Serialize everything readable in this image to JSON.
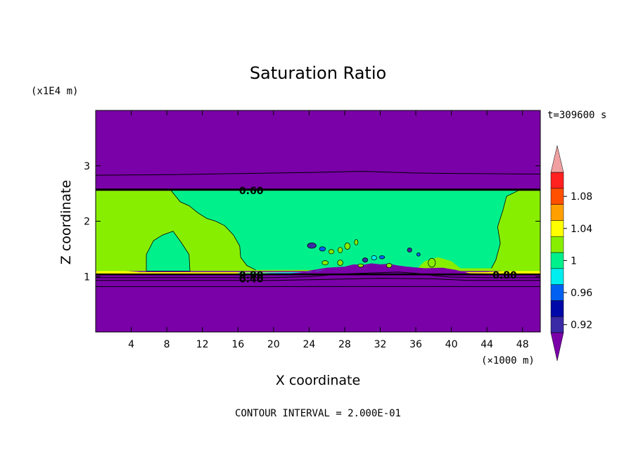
{
  "chart_data": {
    "type": "heatmap",
    "title": "Saturation Ratio",
    "xlabel": "X coordinate",
    "ylabel": "Z coordinate",
    "x_unit": "(×1000 m)",
    "y_unit": "(x1E4 m)",
    "time_label": "t=309600 s",
    "contour_interval_text": "CONTOUR INTERVAL = 2.000E-01",
    "xlim": [
      0,
      50
    ],
    "ylim": [
      0,
      4
    ],
    "x_ticks": [
      4,
      8,
      12,
      16,
      20,
      24,
      28,
      32,
      36,
      40,
      44,
      48
    ],
    "y_ticks": [
      1,
      2,
      3
    ],
    "colorbar": {
      "levels": [
        0.92,
        0.94,
        0.96,
        0.98,
        1.0,
        1.02,
        1.04,
        1.06,
        1.08,
        1.1
      ],
      "labels": [
        "0.92",
        "0.96",
        "1",
        "1.04",
        "1.08"
      ],
      "label_values": [
        0.92,
        0.96,
        1.0,
        1.04,
        1.08
      ],
      "colors": [
        "#3a2aa6",
        "#0008a8",
        "#0060f0",
        "#00eeee",
        "#00f08c",
        "#88ee00",
        "#ffff00",
        "#ffa000",
        "#ff5000",
        "#ff2020"
      ],
      "under_color": "#7a00a8",
      "over_color": "#f0a0a0"
    },
    "regions": {
      "upper_layer_color": "#7a00a8",
      "cloud_layer_color": "#00f08c",
      "edge_layer_color": "#88ee00",
      "lower_layer_color": "#7a00a8",
      "cloud_top_z": 2.55,
      "cloud_base_z": 1.05
    },
    "contour_labels": [
      {
        "text": "0.60",
        "x": 17.5,
        "y": 2.55
      },
      {
        "text": "0.80",
        "x": 17.5,
        "y": 1.03
      },
      {
        "text": "0.40",
        "x": 17.5,
        "y": 0.96
      },
      {
        "text": "0.80",
        "x": 46.0,
        "y": 1.03
      }
    ]
  }
}
